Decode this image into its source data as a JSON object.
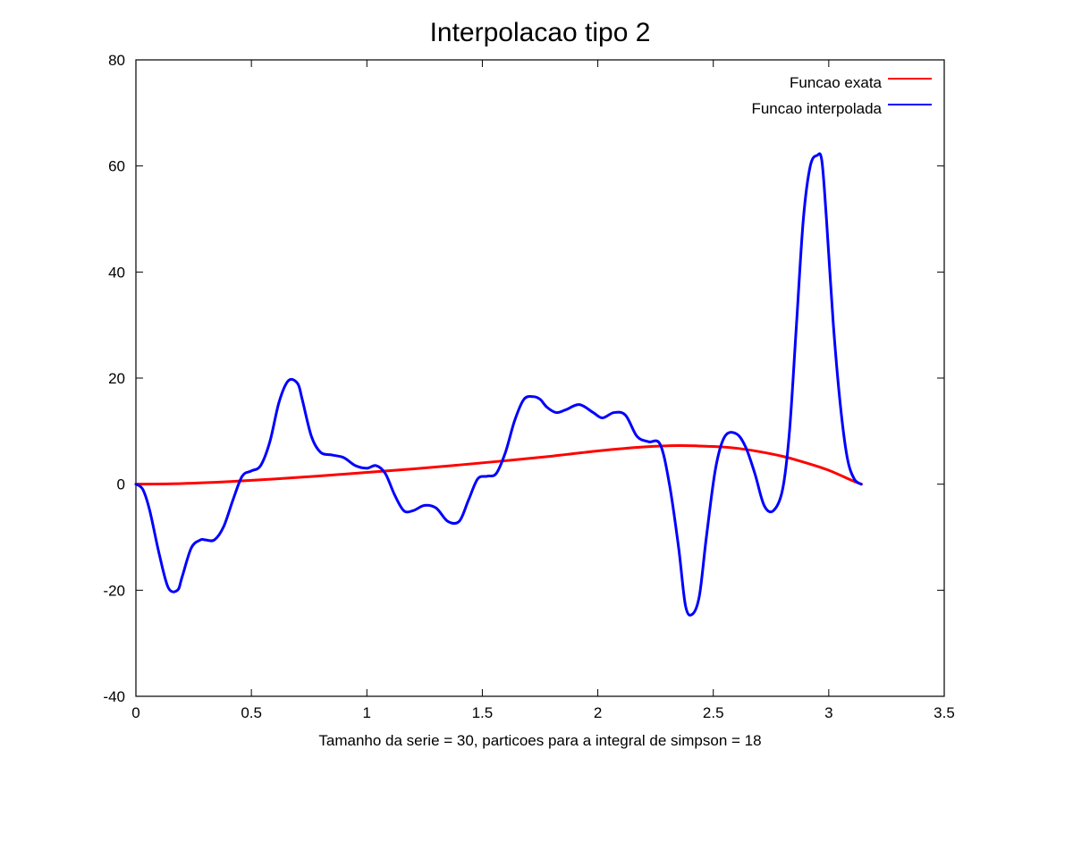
{
  "chart_data": {
    "type": "line",
    "title": "Interpolacao tipo 2",
    "xlabel": "Tamanho da serie = 30, particoes para a integral de simpson = 18",
    "ylabel": "",
    "xlim": [
      0,
      3.5
    ],
    "ylim": [
      -40,
      80
    ],
    "x_ticks": [
      0,
      0.5,
      1,
      1.5,
      2,
      2.5,
      3,
      3.5
    ],
    "x_tick_labels": [
      "0",
      "0.5",
      "1",
      "1.5",
      "2",
      "2.5",
      "3",
      "3.5"
    ],
    "y_ticks": [
      -40,
      -20,
      0,
      20,
      40,
      60,
      80
    ],
    "y_tick_labels": [
      "-40",
      "-20",
      "0",
      "20",
      "40",
      "60",
      "80"
    ],
    "grid": false,
    "legend_position": "top-right",
    "series": [
      {
        "name": "Funcao exata",
        "color": "#ff0000",
        "x": [
          0,
          0.2,
          0.4,
          0.6,
          0.8,
          1.0,
          1.2,
          1.4,
          1.6,
          1.8,
          2.0,
          2.2,
          2.35,
          2.5,
          2.6,
          2.7,
          2.8,
          2.9,
          3.0,
          3.1,
          3.1416
        ],
        "y": [
          0,
          0.12,
          0.47,
          0.97,
          1.57,
          2.21,
          2.88,
          3.62,
          4.42,
          5.28,
          6.27,
          7.02,
          7.28,
          7.1,
          6.78,
          6.13,
          5.25,
          4.04,
          2.62,
          0.7,
          0
        ]
      },
      {
        "name": "Funcao interpolada",
        "color": "#0000ff",
        "x": [
          0,
          0.03,
          0.06,
          0.1,
          0.14,
          0.18,
          0.2,
          0.24,
          0.28,
          0.3,
          0.34,
          0.38,
          0.42,
          0.46,
          0.5,
          0.54,
          0.58,
          0.62,
          0.66,
          0.7,
          0.72,
          0.76,
          0.8,
          0.85,
          0.9,
          0.95,
          1.0,
          1.04,
          1.08,
          1.12,
          1.16,
          1.2,
          1.25,
          1.3,
          1.35,
          1.4,
          1.44,
          1.48,
          1.52,
          1.56,
          1.6,
          1.64,
          1.68,
          1.72,
          1.75,
          1.78,
          1.82,
          1.86,
          1.92,
          1.98,
          2.02,
          2.07,
          2.12,
          2.17,
          2.22,
          2.27,
          2.31,
          2.35,
          2.38,
          2.41,
          2.44,
          2.47,
          2.51,
          2.55,
          2.6,
          2.64,
          2.68,
          2.72,
          2.76,
          2.8,
          2.83,
          2.86,
          2.89,
          2.92,
          2.95,
          2.97,
          2.99,
          3.02,
          3.05,
          3.08,
          3.11,
          3.14
        ],
        "y": [
          0,
          -1,
          -5,
          -13,
          -19.5,
          -20,
          -17.5,
          -12,
          -10.5,
          -10.5,
          -10.5,
          -8,
          -3,
          1.5,
          2.5,
          3.5,
          8,
          15.5,
          19.5,
          19,
          16,
          9,
          6,
          5.5,
          5,
          3.5,
          3,
          3.5,
          2,
          -2,
          -5,
          -5,
          -4,
          -4.5,
          -7,
          -7,
          -3,
          1,
          1.5,
          2,
          6,
          12,
          16,
          16.5,
          16,
          14.5,
          13.5,
          14,
          15,
          13.5,
          12.5,
          13.5,
          13,
          9,
          8,
          7.5,
          0,
          -12,
          -23,
          -24.5,
          -21,
          -10,
          3,
          9,
          9.5,
          7,
          2,
          -4,
          -5,
          -1,
          10,
          30,
          50,
          60,
          62,
          61,
          50,
          30,
          15,
          5,
          1,
          0
        ]
      }
    ]
  }
}
